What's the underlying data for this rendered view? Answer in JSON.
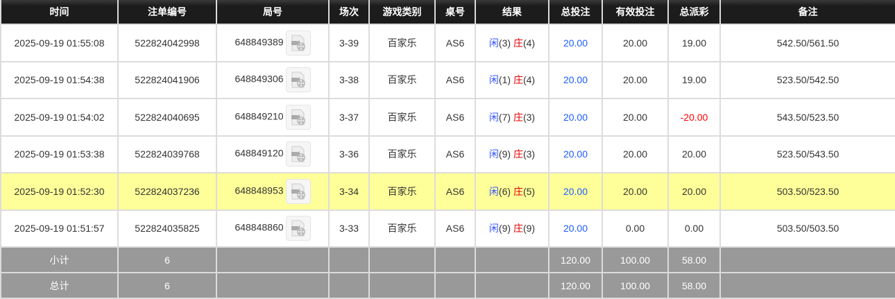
{
  "headers": [
    "时间",
    "注单编号",
    "局号",
    "场次",
    "游戏类别",
    "桌号",
    "结果",
    "总投注",
    "有效投注",
    "总派彩",
    "备注"
  ],
  "rows": [
    {
      "time": "2025-09-19 01:55:08",
      "order": "522824042998",
      "round": "648849389",
      "session": "3-39",
      "game": "百家乐",
      "table": "AS6",
      "xian_label": "闲",
      "xian": "(3)",
      "zhuang_label": "庄",
      "zhuang": "(4)",
      "bet": "20.00",
      "valid": "20.00",
      "payout": "19.00",
      "note": "542.50/561.50",
      "highlight": false,
      "negative": false
    },
    {
      "time": "2025-09-19 01:54:38",
      "order": "522824041906",
      "round": "648849306",
      "session": "3-38",
      "game": "百家乐",
      "table": "AS6",
      "xian_label": "闲",
      "xian": "(1)",
      "zhuang_label": "庄",
      "zhuang": "(4)",
      "bet": "20.00",
      "valid": "20.00",
      "payout": "19.00",
      "note": "523.50/542.50",
      "highlight": false,
      "negative": false
    },
    {
      "time": "2025-09-19 01:54:02",
      "order": "522824040695",
      "round": "648849210",
      "session": "3-37",
      "game": "百家乐",
      "table": "AS6",
      "xian_label": "闲",
      "xian": "(7)",
      "zhuang_label": "庄",
      "zhuang": "(3)",
      "bet": "20.00",
      "valid": "20.00",
      "payout": "-20.00",
      "note": "543.50/523.50",
      "highlight": false,
      "negative": true
    },
    {
      "time": "2025-09-19 01:53:38",
      "order": "522824039768",
      "round": "648849120",
      "session": "3-36",
      "game": "百家乐",
      "table": "AS6",
      "xian_label": "闲",
      "xian": "(9)",
      "zhuang_label": "庄",
      "zhuang": "(3)",
      "bet": "20.00",
      "valid": "20.00",
      "payout": "20.00",
      "note": "523.50/543.50",
      "highlight": false,
      "negative": false
    },
    {
      "time": "2025-09-19 01:52:30",
      "order": "522824037236",
      "round": "648848953",
      "session": "3-34",
      "game": "百家乐",
      "table": "AS6",
      "xian_label": "闲",
      "xian": "(6)",
      "zhuang_label": "庄",
      "zhuang": "(5)",
      "bet": "20.00",
      "valid": "20.00",
      "payout": "20.00",
      "note": "503.50/523.50",
      "highlight": true,
      "negative": false
    },
    {
      "time": "2025-09-19 01:51:57",
      "order": "522824035825",
      "round": "648848860",
      "session": "3-33",
      "game": "百家乐",
      "table": "AS6",
      "xian_label": "闲",
      "xian": "(9)",
      "zhuang_label": "庄",
      "zhuang": "(9)",
      "bet": "20.00",
      "valid": "0.00",
      "payout": "0.00",
      "note": "503.50/503.50",
      "highlight": false,
      "negative": false
    }
  ],
  "subtotal": {
    "label": "小计",
    "count": "6",
    "bet": "120.00",
    "valid": "100.00",
    "payout": "58.00"
  },
  "total": {
    "label": "总计",
    "count": "6",
    "bet": "120.00",
    "valid": "100.00",
    "payout": "58.00"
  },
  "colors": {
    "highlight": "#ffff99",
    "bet": "#1a5cff",
    "negative": "#ff0000",
    "header": "#1c1c1c",
    "summary": "#999999"
  },
  "icons": {
    "replay": "video-replay-icon"
  }
}
